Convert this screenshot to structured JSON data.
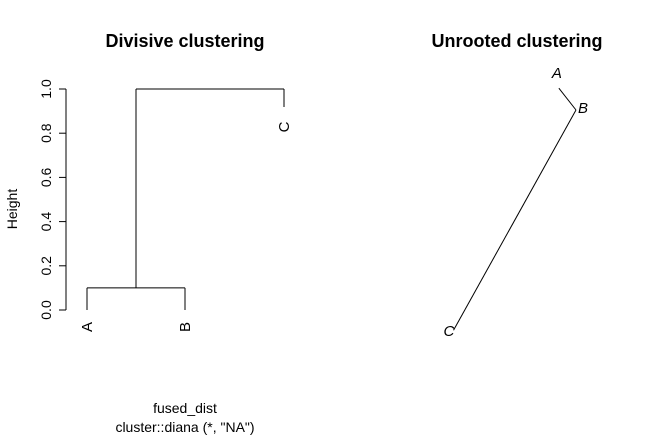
{
  "chart_data": [
    {
      "type": "dendrogram",
      "title": "Divisive clustering",
      "ylabel": "Height",
      "xlabel": "fused_dist",
      "subtitle": "cluster::diana (*, \"NA\")",
      "ylim": [
        0,
        1
      ],
      "yticks": [
        "0.0",
        "0.2",
        "0.4",
        "0.6",
        "0.8",
        "1.0"
      ],
      "yticks_values": [
        0,
        0.2,
        0.4,
        0.6,
        0.8,
        1.0
      ],
      "leaves": [
        "A",
        "B",
        "C"
      ],
      "merges": [
        {
          "left": "A",
          "right": "B",
          "height": 0.1
        },
        {
          "left": "A+B",
          "right": "C",
          "height": 1.0
        }
      ]
    },
    {
      "type": "unrooted-tree",
      "title": "Unrooted clustering",
      "tips": [
        "A",
        "B",
        "C"
      ],
      "edges": [
        {
          "from": "A",
          "to": "B",
          "length": 0.1
        },
        {
          "from": "B",
          "to": "C",
          "length": 1.0
        }
      ]
    }
  ]
}
